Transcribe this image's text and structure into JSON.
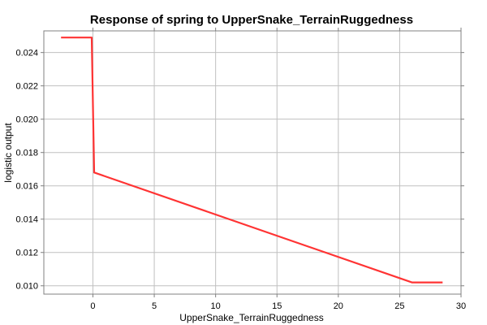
{
  "chart_data": {
    "type": "line",
    "title": "Response of spring to UpperSnake_TerrainRuggedness",
    "xlabel": "UpperSnake_TerrainRuggedness",
    "ylabel": "logistic output",
    "xlim": [
      -4,
      30
    ],
    "ylim": [
      0.0095,
      0.0253
    ],
    "xticks": [
      0,
      5,
      10,
      15,
      20,
      25,
      30
    ],
    "yticks": [
      0.01,
      0.012,
      0.014,
      0.016,
      0.018,
      0.02,
      0.022,
      0.024
    ],
    "ytick_labels": [
      "0.010",
      "0.012",
      "0.014",
      "0.016",
      "0.018",
      "0.020",
      "0.022",
      "0.024"
    ],
    "grid": true,
    "series": [
      {
        "color": "#ff3333",
        "x": [
          -2.6,
          -0.1,
          -0.1,
          0.1,
          26.0,
          28.5
        ],
        "y": [
          0.0249,
          0.0249,
          0.0249,
          0.0168,
          0.0102,
          0.0102
        ]
      }
    ]
  }
}
